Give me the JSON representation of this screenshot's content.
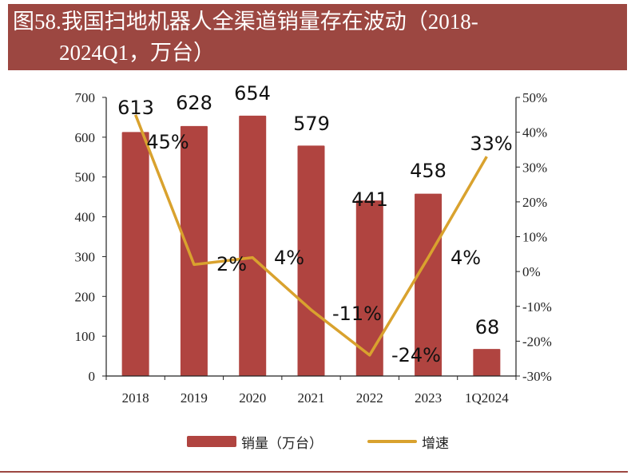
{
  "title": {
    "line1": "图58.我国扫地机器人全渠道销量存在波动（2018-",
    "line2": "2024Q1，万台）"
  },
  "colors": {
    "banner": "#9c4741",
    "bars": "#b04440",
    "line": "#d9a22e"
  },
  "chart_data": {
    "type": "bar+line",
    "categories": [
      "2018",
      "2019",
      "2020",
      "2021",
      "2022",
      "2023",
      "1Q2024"
    ],
    "series": [
      {
        "name": "销量（万台）",
        "type": "bar",
        "axis": "left",
        "values": [
          613,
          628,
          654,
          579,
          441,
          458,
          68
        ],
        "labels": [
          "613",
          "628",
          "654",
          "579",
          "441",
          "458",
          "68"
        ]
      },
      {
        "name": "增速",
        "type": "line",
        "axis": "right",
        "values": [
          45,
          2,
          4,
          -11,
          -24,
          4,
          33
        ],
        "labels": [
          "45%",
          "2%",
          "4%",
          "-11%",
          "-24%",
          "4%",
          "33%"
        ]
      }
    ],
    "left_axis": {
      "ylim": [
        0,
        700
      ],
      "ticks": [
        "0",
        "100",
        "200",
        "300",
        "400",
        "500",
        "600",
        "700"
      ]
    },
    "right_axis": {
      "ylim": [
        -30,
        50
      ],
      "ticks": [
        "-30%",
        "-20%",
        "-10%",
        "0%",
        "10%",
        "20%",
        "30%",
        "40%",
        "50%"
      ]
    },
    "grid": false,
    "legend": "bottom"
  }
}
